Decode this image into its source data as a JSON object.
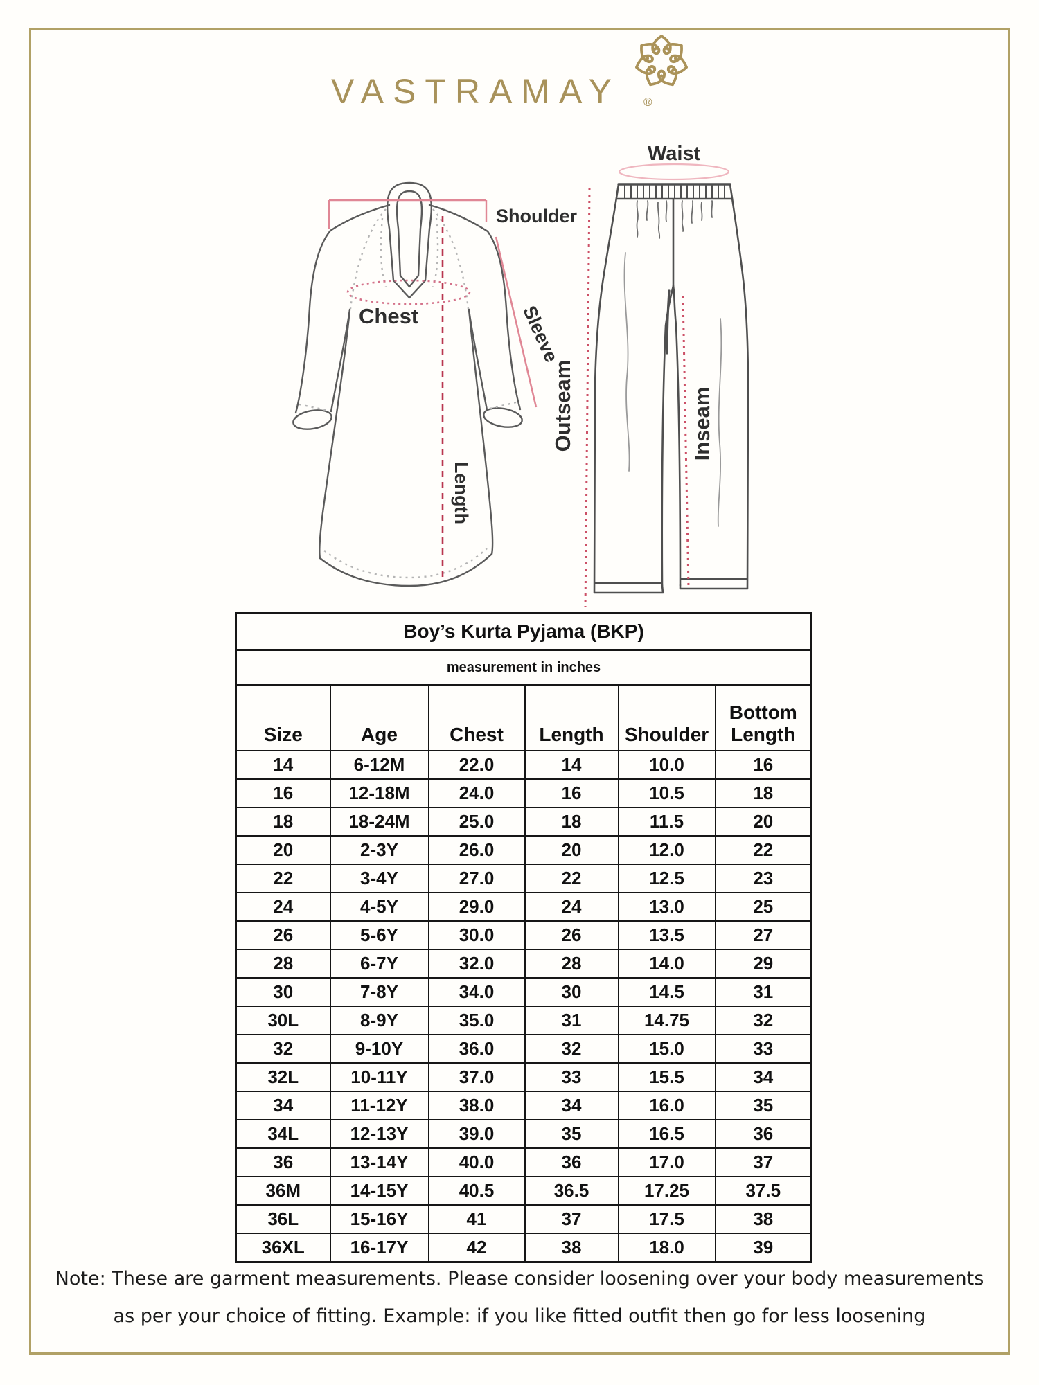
{
  "brand": {
    "logo_text": "VASTRAMAY",
    "registered_mark": "®"
  },
  "diagram": {
    "kurta_labels": {
      "shoulder": "Shoulder",
      "chest": "Chest",
      "sleeve": "Sleeve",
      "length": "Length"
    },
    "pyjama_labels": {
      "waist": "Waist",
      "outseam": "Outseam",
      "inseam": "Inseam"
    }
  },
  "size_chart": {
    "title": "Boy’s Kurta Pyjama (BKP)",
    "subtitle": "measurement in inches",
    "columns": [
      "Size",
      "Age",
      "Chest",
      "Length",
      "Shoulder",
      "Bottom Length"
    ],
    "rows": [
      [
        "14",
        "6-12M",
        "22.0",
        "14",
        "10.0",
        "16"
      ],
      [
        "16",
        "12-18M",
        "24.0",
        "16",
        "10.5",
        "18"
      ],
      [
        "18",
        "18-24M",
        "25.0",
        "18",
        "11.5",
        "20"
      ],
      [
        "20",
        "2-3Y",
        "26.0",
        "20",
        "12.0",
        "22"
      ],
      [
        "22",
        "3-4Y",
        "27.0",
        "22",
        "12.5",
        "23"
      ],
      [
        "24",
        "4-5Y",
        "29.0",
        "24",
        "13.0",
        "25"
      ],
      [
        "26",
        "5-6Y",
        "30.0",
        "26",
        "13.5",
        "27"
      ],
      [
        "28",
        "6-7Y",
        "32.0",
        "28",
        "14.0",
        "29"
      ],
      [
        "30",
        "7-8Y",
        "34.0",
        "30",
        "14.5",
        "31"
      ],
      [
        "30L",
        "8-9Y",
        "35.0",
        "31",
        "14.75",
        "32"
      ],
      [
        "32",
        "9-10Y",
        "36.0",
        "32",
        "15.0",
        "33"
      ],
      [
        "32L",
        "10-11Y",
        "37.0",
        "33",
        "15.5",
        "34"
      ],
      [
        "34",
        "11-12Y",
        "38.0",
        "34",
        "16.0",
        "35"
      ],
      [
        "34L",
        "12-13Y",
        "39.0",
        "35",
        "16.5",
        "36"
      ],
      [
        "36",
        "13-14Y",
        "40.0",
        "36",
        "17.0",
        "37"
      ],
      [
        "36M",
        "14-15Y",
        "40.5",
        "36.5",
        "17.25",
        "37.5"
      ],
      [
        "36L",
        "15-16Y",
        "41",
        "37",
        "17.5",
        "38"
      ],
      [
        "36XL",
        "16-17Y",
        "42",
        "38",
        "18.0",
        "39"
      ]
    ]
  },
  "note": {
    "line1": "Note: These are garment measurements. Please consider loosening over your body measurements",
    "line2": "as per your choice of fitting. Example: if you like fitted outfit then go for less loosening"
  },
  "colors": {
    "gold": "#a8925a",
    "frame_border": "#b1a166",
    "sketch_line": "#5a5a5a",
    "measure_pink": "#e08795",
    "measure_red": "#b8364f",
    "table_line": "#161616"
  }
}
